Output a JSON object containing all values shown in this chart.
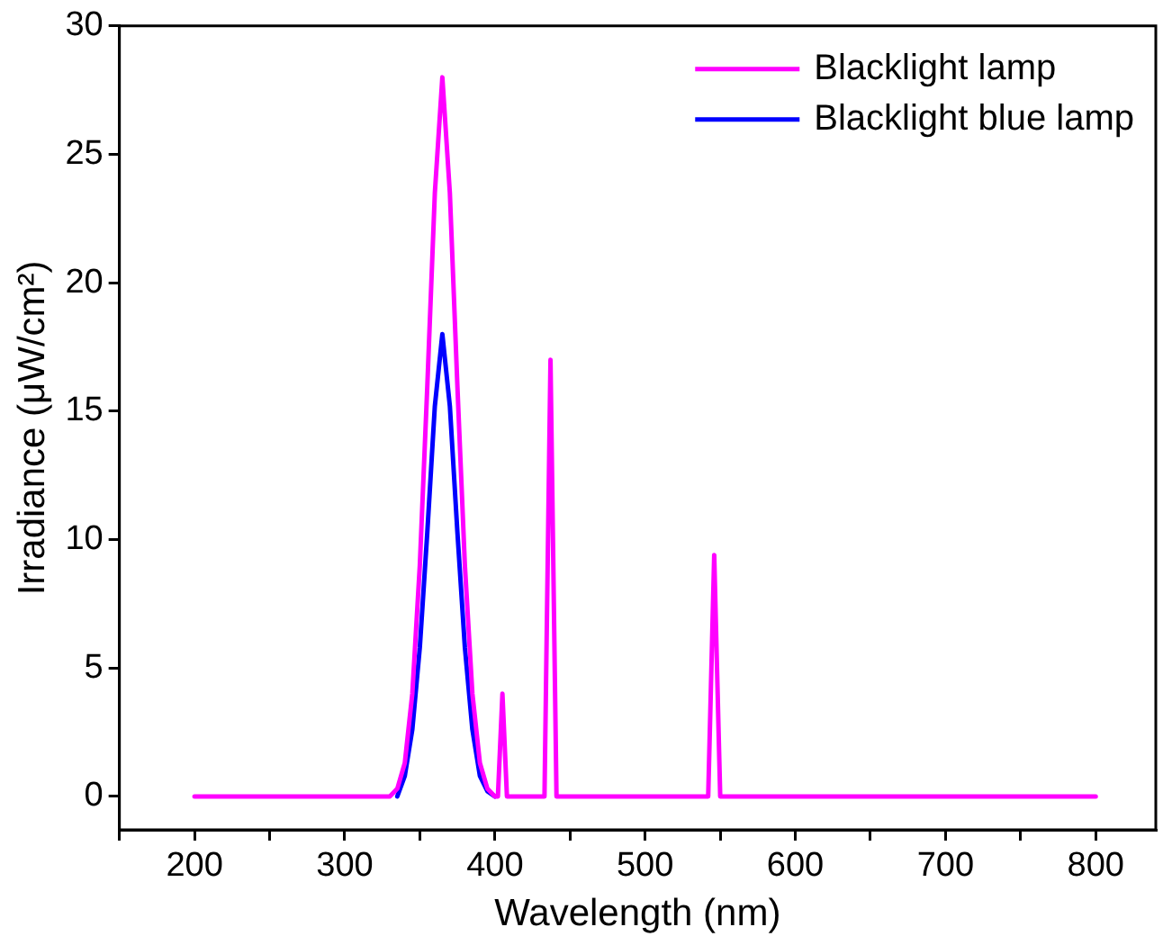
{
  "chart_data": {
    "type": "line",
    "xlabel": "Wavelength (nm)",
    "ylabel": "Irradiance (μW/cm²)",
    "xlim": [
      150,
      840
    ],
    "ylim": [
      -1.3,
      30
    ],
    "xticks": [
      {
        "value": 150,
        "label": null
      },
      200,
      {
        "value": 250,
        "label": null
      },
      300,
      {
        "value": 350,
        "label": null
      },
      400,
      {
        "value": 450,
        "label": null
      },
      500,
      {
        "value": 550,
        "label": null
      },
      600,
      {
        "value": 650,
        "label": null
      },
      700,
      {
        "value": 750,
        "label": null
      },
      800
    ],
    "yticks": [
      0,
      5,
      10,
      15,
      20,
      25,
      30
    ],
    "grid": false,
    "legend": "top right",
    "marker": "none",
    "line_style": "solid",
    "series": [
      {
        "name": "Blacklight lamp",
        "color": "#ff00ff",
        "x": [
          200,
          330,
          335,
          340,
          345,
          350,
          355,
          360,
          365,
          370,
          375,
          380,
          385,
          390,
          395,
          400,
          402,
          405,
          408,
          433,
          437,
          441,
          542,
          546,
          550,
          800
        ],
        "values": [
          0,
          0,
          0.3,
          1.3,
          4,
          9,
          16,
          23.5,
          28,
          23.5,
          16,
          9,
          4,
          1.3,
          0.3,
          0,
          0,
          4,
          0,
          0,
          17,
          0,
          0,
          9.4,
          0,
          0
        ]
      },
      {
        "name": "Blacklight blue lamp",
        "color": "#0000ff",
        "x": [
          335,
          340,
          345,
          350,
          355,
          360,
          365,
          370,
          375,
          380,
          385,
          390,
          395,
          400
        ],
        "values": [
          0,
          0.8,
          2.6,
          5.8,
          10.3,
          15.2,
          18,
          15.2,
          10.3,
          5.8,
          2.6,
          0.8,
          0.2,
          0
        ]
      }
    ]
  }
}
